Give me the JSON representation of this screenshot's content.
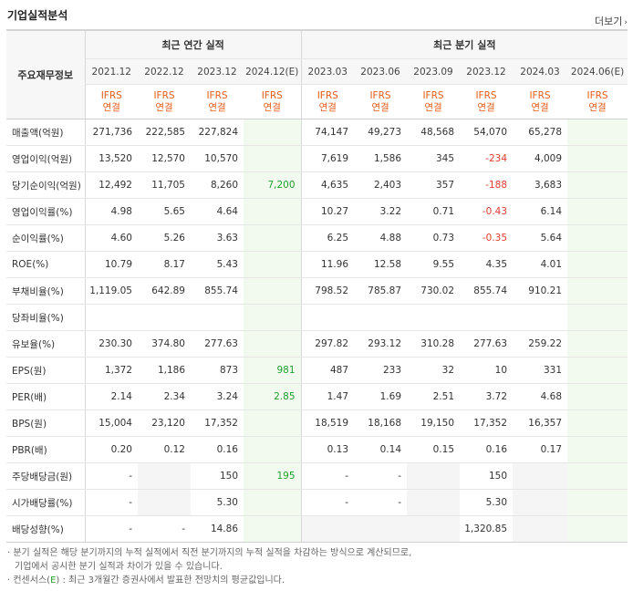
{
  "title": "기업실적분석",
  "more_label": "더보기",
  "header": {
    "label_col": "주요재무정보",
    "annual_group": "최근 연간 실적",
    "quarter_group": "최근 분기 실적",
    "periods": [
      "2021.12",
      "2022.12",
      "2023.12",
      "2024.12(E)",
      "2023.03",
      "2023.06",
      "2023.09",
      "2023.12",
      "2024.03",
      "2024.06(E)"
    ],
    "basis_top": "IFRS",
    "basis_bottom": "연결"
  },
  "rows": [
    {
      "label": "매출액(억원)",
      "values": [
        "271,736",
        "222,585",
        "227,824",
        "",
        "74,147",
        "49,273",
        "48,568",
        "54,070",
        "65,278",
        ""
      ]
    },
    {
      "label": "영업이익(억원)",
      "values": [
        "13,520",
        "12,570",
        "10,570",
        "",
        "7,619",
        "1,586",
        "345",
        "-234",
        "4,009",
        ""
      ]
    },
    {
      "label": "당기순이익(억원)",
      "values": [
        "12,492",
        "11,705",
        "8,260",
        "7,200",
        "4,635",
        "2,403",
        "357",
        "-188",
        "3,683",
        ""
      ]
    },
    {
      "label": "영업이익률(%)",
      "values": [
        "4.98",
        "5.65",
        "4.64",
        "",
        "10.27",
        "3.22",
        "0.71",
        "-0.43",
        "6.14",
        ""
      ]
    },
    {
      "label": "순이익률(%)",
      "values": [
        "4.60",
        "5.26",
        "3.63",
        "",
        "6.25",
        "4.88",
        "0.73",
        "-0.35",
        "5.64",
        ""
      ]
    },
    {
      "label": "ROE(%)",
      "values": [
        "10.79",
        "8.17",
        "5.43",
        "",
        "11.96",
        "12.58",
        "9.55",
        "4.35",
        "4.01",
        ""
      ]
    },
    {
      "label": "부채비율(%)",
      "values": [
        "1,119.05",
        "642.89",
        "855.74",
        "",
        "798.52",
        "785.87",
        "730.02",
        "855.74",
        "910.21",
        ""
      ]
    },
    {
      "label": "당좌비율(%)",
      "values": [
        "",
        "",
        "",
        "",
        "",
        "",
        "",
        "",
        "",
        ""
      ]
    },
    {
      "label": "유보율(%)",
      "values": [
        "230.30",
        "374.80",
        "277.63",
        "",
        "297.82",
        "293.12",
        "310.28",
        "277.63",
        "259.22",
        ""
      ]
    },
    {
      "label": "EPS(원)",
      "values": [
        "1,372",
        "1,186",
        "873",
        "981",
        "487",
        "233",
        "32",
        "10",
        "331",
        ""
      ]
    },
    {
      "label": "PER(배)",
      "values": [
        "2.14",
        "2.34",
        "3.24",
        "2.85",
        "1.47",
        "1.69",
        "2.51",
        "3.72",
        "4.68",
        ""
      ]
    },
    {
      "label": "BPS(원)",
      "values": [
        "15,004",
        "23,120",
        "17,352",
        "",
        "18,519",
        "18,168",
        "19,150",
        "17,352",
        "16,357",
        ""
      ]
    },
    {
      "label": "PBR(배)",
      "values": [
        "0.20",
        "0.12",
        "0.16",
        "",
        "0.13",
        "0.14",
        "0.15",
        "0.16",
        "0.17",
        ""
      ]
    },
    {
      "label": "주당배당금(원)",
      "values": [
        "-",
        "",
        "150",
        "195",
        "-",
        "-",
        "",
        "150",
        "",
        ""
      ]
    },
    {
      "label": "시가배당률(%)",
      "values": [
        "-",
        "",
        "5.30",
        "",
        "-",
        "-",
        "",
        "5.30",
        "",
        ""
      ]
    },
    {
      "label": "배당성향(%)",
      "values": [
        "-",
        "-",
        "14.86",
        "",
        "",
        "",
        "",
        "1,320.85",
        "",
        ""
      ]
    }
  ],
  "notes": {
    "line1": "분기 실적은 해당 분기까지의 누적 실적에서 직전 분기까지의 누적 실적을 차감하는 방식으로 계산되므로,",
    "line2": "기업에서 공시한 분기 실적과 차이가 있을 수 있습니다.",
    "line3_prefix": "컨센서스(",
    "line3_e": "E",
    "line3_suffix": ") : 최근 3개월간 증권사에서 발표한 전망치의 평균값입니다."
  },
  "colors": {
    "ifrs": "#e55c1b",
    "estimate": "#1fa22e",
    "negative": "#e03c31",
    "estimate_bg": "#f2f9ef"
  }
}
